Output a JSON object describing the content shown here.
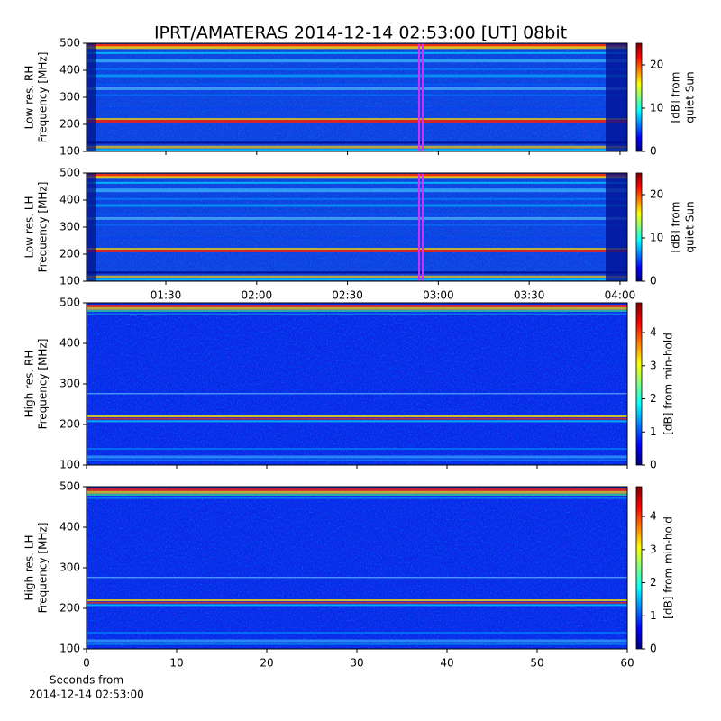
{
  "title": "IPRT/AMATERAS 2014-12-14 02:53:00 [UT]   08bit",
  "colormap": [
    "#00007f",
    "#0000ff",
    "#007fff",
    "#00ffff",
    "#7fff7f",
    "#ffff00",
    "#ff7f00",
    "#ff0000",
    "#7f0000"
  ],
  "chart_data": [
    {
      "type": "heatmap",
      "ylabel": [
        "Low res. RH",
        "Frequency [MHz]"
      ],
      "ylim": [
        100,
        500
      ],
      "yticks": [
        100,
        200,
        300,
        400,
        500
      ],
      "xlim": [
        63.8,
        242.4
      ],
      "xticks": [
        90,
        120,
        150,
        180,
        210,
        240
      ],
      "colorbar": {
        "label": [
          "[dB] from",
          "quiet Sun"
        ],
        "lim": [
          0,
          25
        ],
        "ticks": [
          0,
          10,
          20
        ]
      }
    },
    {
      "type": "heatmap",
      "ylabel": [
        "Low res. LH",
        "Frequency [MHz]"
      ],
      "ylim": [
        100,
        500
      ],
      "yticks": [
        100,
        200,
        300,
        400,
        500
      ],
      "xlim": [
        63.8,
        242.4
      ],
      "xticks": [
        {
          "value": 90,
          "label": "01:30"
        },
        {
          "value": 120,
          "label": "02:00"
        },
        {
          "value": 150,
          "label": "02:30"
        },
        {
          "value": 180,
          "label": "03:00"
        },
        {
          "value": 210,
          "label": "03:30"
        },
        {
          "value": 240,
          "label": "04:00"
        }
      ],
      "colorbar": {
        "label": [
          "[dB] from",
          "quiet Sun"
        ],
        "lim": [
          0,
          25
        ],
        "ticks": [
          0,
          10,
          20
        ]
      }
    },
    {
      "type": "heatmap",
      "ylabel": [
        "High res. RH",
        "Frequency [MHz]"
      ],
      "ylim": [
        100,
        500
      ],
      "yticks": [
        100,
        200,
        300,
        400,
        500
      ],
      "xlim": [
        0,
        60
      ],
      "xticks": [
        0,
        10,
        20,
        30,
        40,
        50,
        60
      ],
      "colorbar": {
        "label": [
          "[dB] from min-hold"
        ],
        "lim": [
          0,
          4.9
        ],
        "ticks": [
          0,
          1,
          2,
          3,
          4
        ]
      }
    },
    {
      "type": "heatmap",
      "ylabel": [
        "High res. LH",
        "Frequency [MHz]"
      ],
      "ylim": [
        100,
        500
      ],
      "yticks": [
        100,
        200,
        300,
        400,
        500
      ],
      "xlim": [
        0,
        60
      ],
      "xticks": [
        0,
        10,
        20,
        30,
        40,
        50,
        60
      ],
      "xticklabels": true,
      "xlabel": [
        "Seconds from",
        "2014-12-14 02:53:00"
      ],
      "colorbar": {
        "label": [
          "[dB] from min-hold"
        ],
        "lim": [
          0,
          4.9
        ],
        "ticks": [
          0,
          1,
          2,
          3,
          4
        ]
      }
    }
  ]
}
